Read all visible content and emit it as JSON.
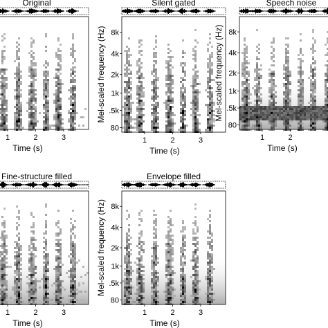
{
  "chart_data": [
    {
      "type": "heatmap",
      "title": "Original",
      "xlabel": "Time (s)",
      "ylabel": "",
      "x_ticks": [
        "1",
        "2",
        "3"
      ],
      "y_ticks": []
    },
    {
      "type": "heatmap",
      "title": "Silent gated",
      "xlabel": "Time (s)",
      "ylabel": "Mel-scaled frequency (Hz)",
      "x_ticks": [
        "1",
        "2",
        "3"
      ],
      "y_ticks": [
        "8k",
        "4k",
        "2k",
        "1k",
        ".5k",
        "80"
      ]
    },
    {
      "type": "heatmap",
      "title": "Speech noise",
      "xlabel": "Time (s)",
      "ylabel": "Mel-scaled frequency (Hz)",
      "x_ticks": [
        "1",
        "2"
      ],
      "y_ticks": [
        "8k",
        "4k",
        "2k",
        "1k",
        ".5k",
        "80"
      ]
    },
    {
      "type": "heatmap",
      "title": "Fine-structure filled",
      "xlabel": "Time (s)",
      "ylabel": "",
      "x_ticks": [
        "1",
        "2",
        "3"
      ],
      "y_ticks": []
    },
    {
      "type": "heatmap",
      "title": "Envelope filled",
      "xlabel": "Time (s)",
      "ylabel": "Mel-scaled frequency (Hz)",
      "x_ticks": [
        "1",
        "2",
        "3"
      ],
      "y_ticks": [
        "8k",
        "4k",
        "2k",
        "1k",
        ".5k",
        "80"
      ]
    }
  ]
}
